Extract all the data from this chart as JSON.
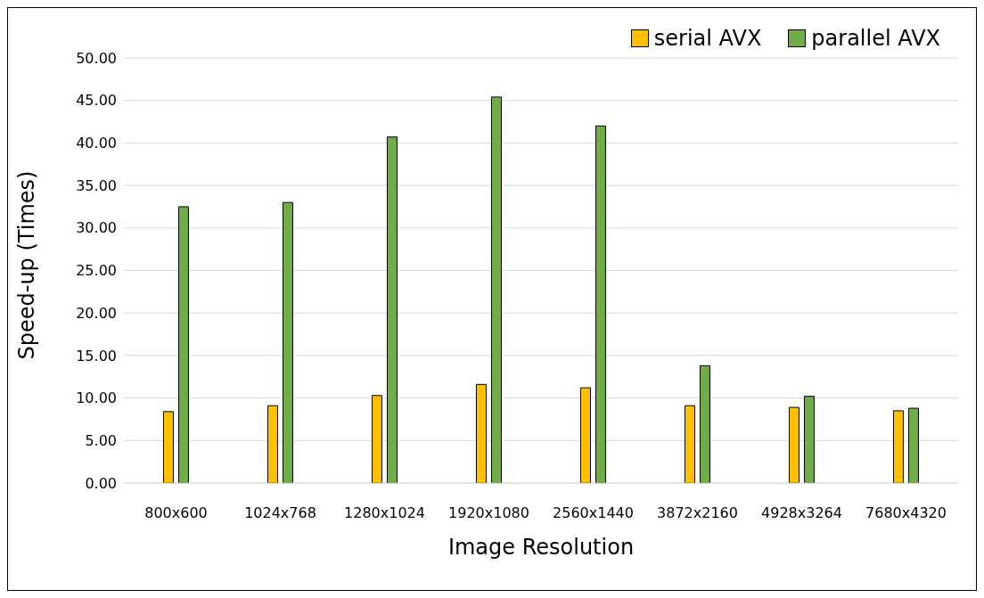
{
  "chart_data": {
    "type": "bar",
    "xlabel": "Image Resolution",
    "ylabel": "Speed-up (Times)",
    "categories": [
      "800x600",
      "1024x768",
      "1280x1024",
      "1920x1080",
      "2560x1440",
      "3872x2160",
      "4928x3264",
      "7680x4320"
    ],
    "series": [
      {
        "name": "serial AVX",
        "color": "#ffc000",
        "values": [
          8.4,
          9.1,
          10.3,
          11.6,
          11.2,
          9.1,
          8.9,
          8.5
        ]
      },
      {
        "name": "parallel AVX",
        "color": "#70ad47",
        "values": [
          32.5,
          33.0,
          40.7,
          45.4,
          42.0,
          13.8,
          10.2,
          8.8
        ]
      }
    ],
    "ylim": [
      0,
      50
    ],
    "yticks": [
      {
        "value": 0,
        "label": "0.00"
      },
      {
        "value": 5,
        "label": "5.00"
      },
      {
        "value": 10,
        "label": "10.00"
      },
      {
        "value": 15,
        "label": "15.00"
      },
      {
        "value": 20,
        "label": "20.00"
      },
      {
        "value": 25,
        "label": "25.00"
      },
      {
        "value": 30,
        "label": "30.00"
      },
      {
        "value": 35,
        "label": "35.00"
      },
      {
        "value": 40,
        "label": "40.00"
      },
      {
        "value": 45,
        "label": "45.00"
      },
      {
        "value": 50,
        "label": "50.00"
      }
    ],
    "grid": "y",
    "legend": "top right"
  }
}
